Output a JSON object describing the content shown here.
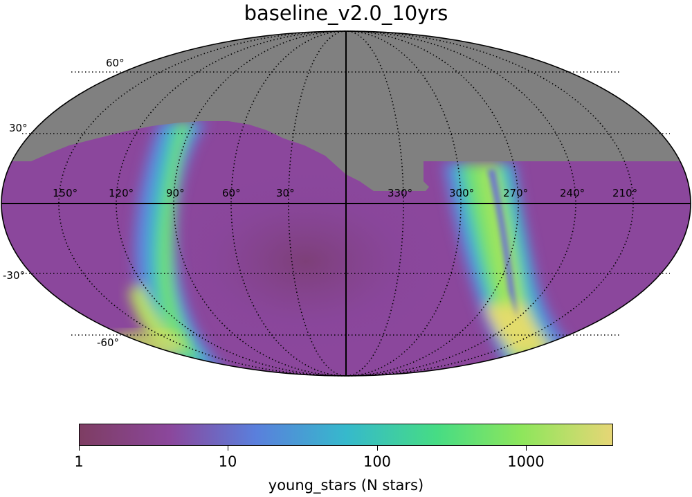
{
  "title": "baseline_v2.0_10yrs",
  "map": {
    "projection": "mollweide",
    "masked_region_color": "#808080",
    "lat_labels": [
      "60°",
      "30°",
      "-30°",
      "-60°"
    ],
    "lon_labels": [
      "150°",
      "120°",
      "90°",
      "60°",
      "30°",
      "330°",
      "300°",
      "270°",
      "240°",
      "210°"
    ]
  },
  "colorbar": {
    "label": "young_stars (N stars)",
    "scale": "log",
    "range": [
      1,
      4000
    ],
    "ticks": [
      "1",
      "10",
      "100",
      "1000"
    ],
    "colormap": [
      "#7e3d63",
      "#8b479c",
      "#5a7fdc",
      "#36b9cc",
      "#46dc84",
      "#8ee65c",
      "#e6d676"
    ]
  }
}
